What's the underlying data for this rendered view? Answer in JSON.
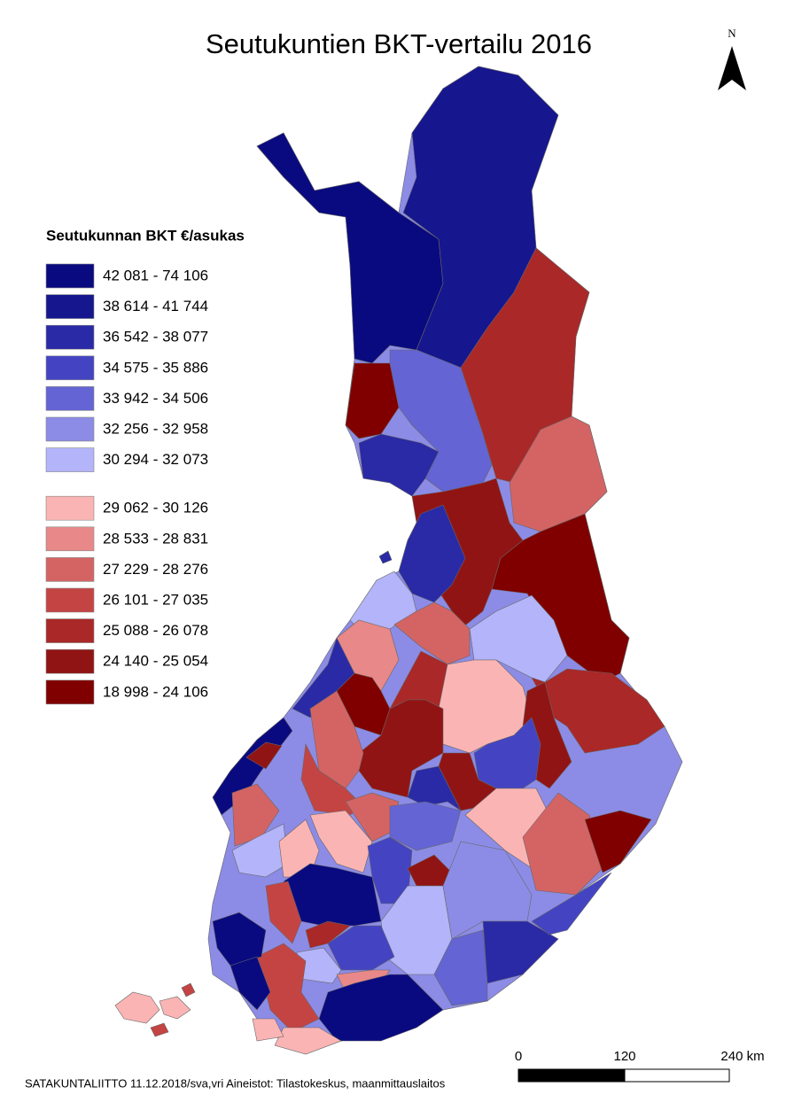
{
  "title": "Seutukuntien BKT-vertailu 2016",
  "north": "N",
  "legend": {
    "title": "Seutukunnan BKT €/asukas",
    "items": [
      {
        "label": "42 081 - 74 106",
        "color": "#0a0a80"
      },
      {
        "label": "38 614 - 41 744",
        "color": "#16168f"
      },
      {
        "label": "36 542 - 38 077",
        "color": "#2a2aa6"
      },
      {
        "label": "34 575 - 35 886",
        "color": "#4444c2"
      },
      {
        "label": "33 942 - 34 506",
        "color": "#6464d4"
      },
      {
        "label": "32 256 - 32 958",
        "color": "#8c8ce6"
      },
      {
        "label": "30 294 - 32 073",
        "color": "#b4b4fa"
      },
      {
        "label": "29 062 - 30 126",
        "color": "#fbb4b4"
      },
      {
        "label": "28 533 - 28 831",
        "color": "#e88888"
      },
      {
        "label": "27 229 - 28 276",
        "color": "#d46464"
      },
      {
        "label": "26 101 - 27 035",
        "color": "#c44444"
      },
      {
        "label": "25 088 - 26 078",
        "color": "#aa2828"
      },
      {
        "label": "24 140 - 25 054",
        "color": "#911414"
      },
      {
        "label": "18 998 - 24 106",
        "color": "#800000"
      }
    ]
  },
  "scale_bar": {
    "labels": [
      "0",
      "120",
      "240 km"
    ]
  },
  "footer": "SATAKUNTALIITTO 11.12.2018/sva,vri Aineistot: Tilastokeskus, maanmittauslaitos"
}
